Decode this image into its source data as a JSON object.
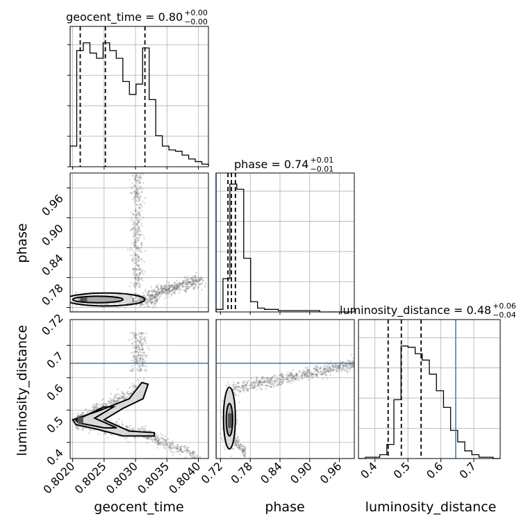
{
  "chart_data": {
    "type": "corner",
    "parameters": [
      "geocent_time",
      "phase",
      "luminosity_distance"
    ],
    "titles": [
      {
        "param": "geocent_time",
        "text": "geocent_time = 0.80",
        "plus": "+0.00",
        "minus": "−0.00"
      },
      {
        "param": "phase",
        "text": "phase = 0.74",
        "plus": "+0.01",
        "minus": "−0.01"
      },
      {
        "param": "luminosity_distance",
        "text": "luminosity_distance = 0.48",
        "plus": "+0.06",
        "minus": "−0.04"
      }
    ],
    "axis_labels": {
      "geocent_time": "geocent_time",
      "phase": "phase",
      "luminosity_distance": "luminosity_distance"
    },
    "ticks": {
      "geocent_time": [
        "0.8020",
        "0.8025",
        "0.8030",
        "0.8035",
        "0.8040"
      ],
      "phase": [
        "0.72",
        "0.78",
        "0.84",
        "0.90",
        "0.96"
      ],
      "luminosity_distance": [
        "0.4",
        "0.5",
        "0.6",
        "0.7"
      ],
      "luminosity_distance_y": [
        "0.4",
        "0.5",
        "0.6",
        "0.7"
      ]
    },
    "ranges": {
      "geocent_time": [
        0.80196,
        0.80416
      ],
      "phase": [
        0.711,
        0.99
      ],
      "luminosity_distance": [
        0.35,
        0.78
      ]
    },
    "truths": {
      "phase": 0.711,
      "luminosity_distance": 0.645
    },
    "quantiles": {
      "geocent_time": [
        0.80212,
        0.80252,
        0.80315
      ],
      "phase": [
        0.735,
        0.742,
        0.75
      ],
      "luminosity_distance": [
        0.44,
        0.48,
        0.54
      ]
    },
    "histograms": {
      "geocent_time": [
        0.16,
        0.9,
        0.96,
        0.88,
        0.84,
        0.96,
        0.9,
        0.84,
        0.66,
        0.56,
        0.64,
        0.92,
        0.52,
        0.24,
        0.16,
        0.13,
        0.12,
        0.09,
        0.06,
        0.04,
        0.02
      ],
      "phase": [
        0.02,
        0.26,
        1.0,
        0.96,
        0.42,
        0.08,
        0.03,
        0.02,
        0.02,
        0.01,
        0.01,
        0.01,
        0.01,
        0.01,
        0.01,
        0.0,
        0.0,
        0.0,
        0.0,
        0.0
      ],
      "luminosity_distance": [
        0.0,
        0.01,
        0.01,
        0.03,
        0.11,
        0.46,
        0.88,
        0.87,
        0.82,
        0.77,
        0.66,
        0.53,
        0.4,
        0.22,
        0.13,
        0.06,
        0.03,
        0.01,
        0.01,
        0.0
      ]
    },
    "grid": true
  }
}
